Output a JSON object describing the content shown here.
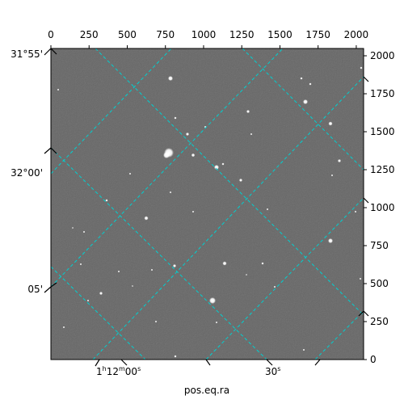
{
  "figure": {
    "xlabel": "pos.eq.ra",
    "top_axis_ticks": [
      "0",
      "250",
      "500",
      "750",
      "1000",
      "1250",
      "1500",
      "1750",
      "2000"
    ],
    "right_axis_ticks": [
      "0",
      "250",
      "500",
      "750",
      "1000",
      "1250",
      "1500",
      "1750",
      "2000"
    ],
    "dec_labels": [
      "31°55'",
      "32°00'",
      "05'"
    ],
    "ra_labels": {
      "first": {
        "h": "1",
        "h_unit": "h",
        "m": "12",
        "m_unit": "m",
        "s": "00",
        "s_unit": "s"
      },
      "second": {
        "s": "30",
        "s_unit": "s"
      }
    },
    "grid_color": "#00d0d0",
    "image_background": "#666666"
  }
}
